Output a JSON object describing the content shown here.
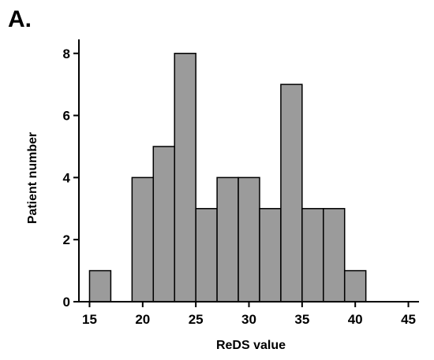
{
  "panel_label": "A.",
  "chart_data": {
    "type": "bar",
    "xlabel": "ReDS value",
    "ylabel": "Patient number",
    "xlim": [
      14,
      46
    ],
    "ylim": [
      0,
      8.4
    ],
    "x_ticks": [
      15,
      20,
      25,
      30,
      35,
      40,
      45
    ],
    "y_ticks": [
      0,
      2,
      4,
      6,
      8
    ],
    "bin_width": 2,
    "bins": [
      {
        "start": 15,
        "end": 17,
        "count": 1
      },
      {
        "start": 17,
        "end": 19,
        "count": 0
      },
      {
        "start": 19,
        "end": 21,
        "count": 4
      },
      {
        "start": 21,
        "end": 23,
        "count": 5
      },
      {
        "start": 23,
        "end": 25,
        "count": 8
      },
      {
        "start": 25,
        "end": 27,
        "count": 3
      },
      {
        "start": 27,
        "end": 29,
        "count": 4
      },
      {
        "start": 29,
        "end": 31,
        "count": 4
      },
      {
        "start": 31,
        "end": 33,
        "count": 3
      },
      {
        "start": 33,
        "end": 35,
        "count": 7
      },
      {
        "start": 35,
        "end": 37,
        "count": 3
      },
      {
        "start": 37,
        "end": 39,
        "count": 3
      },
      {
        "start": 39,
        "end": 41,
        "count": 1
      }
    ],
    "bar_color": "#9b9b9b",
    "grid": false,
    "legend": "none"
  }
}
